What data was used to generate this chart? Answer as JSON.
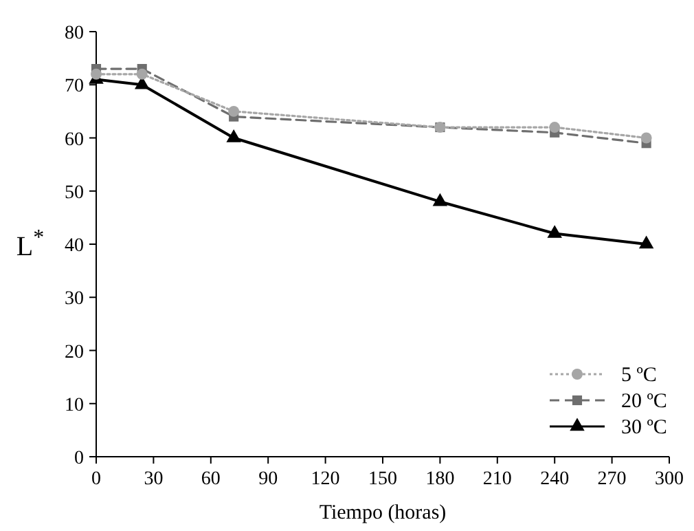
{
  "chart_data": {
    "type": "line",
    "xlabel": "Tiempo (horas)",
    "ylabel": "L$^{*}$",
    "x": [
      0,
      24,
      72,
      180,
      240,
      288
    ],
    "series": [
      {
        "name": "5 ºC",
        "color": "#a6a6a6",
        "values": [
          72,
          72,
          65,
          62,
          62,
          60
        ],
        "marker": "circle",
        "line_style": "dotted"
      },
      {
        "name": "20 ºC",
        "color": "#6e6e6e",
        "values": [
          73,
          73,
          64,
          62,
          61,
          59
        ],
        "marker": "square",
        "line_style": "dashed"
      },
      {
        "name": "30 ºC",
        "color": "#000000",
        "values": [
          71,
          70,
          60,
          48,
          42,
          40
        ],
        "marker": "triangle",
        "line_style": "solid"
      }
    ],
    "xlim": [
      0,
      300
    ],
    "xticks": [
      0,
      30,
      60,
      90,
      120,
      150,
      180,
      210,
      240,
      270,
      300
    ],
    "ylim": [
      0,
      80
    ],
    "yticks": [
      0,
      10,
      20,
      30,
      40,
      50,
      60,
      70,
      80
    ],
    "legend": "bottom right",
    "grid": false
  }
}
